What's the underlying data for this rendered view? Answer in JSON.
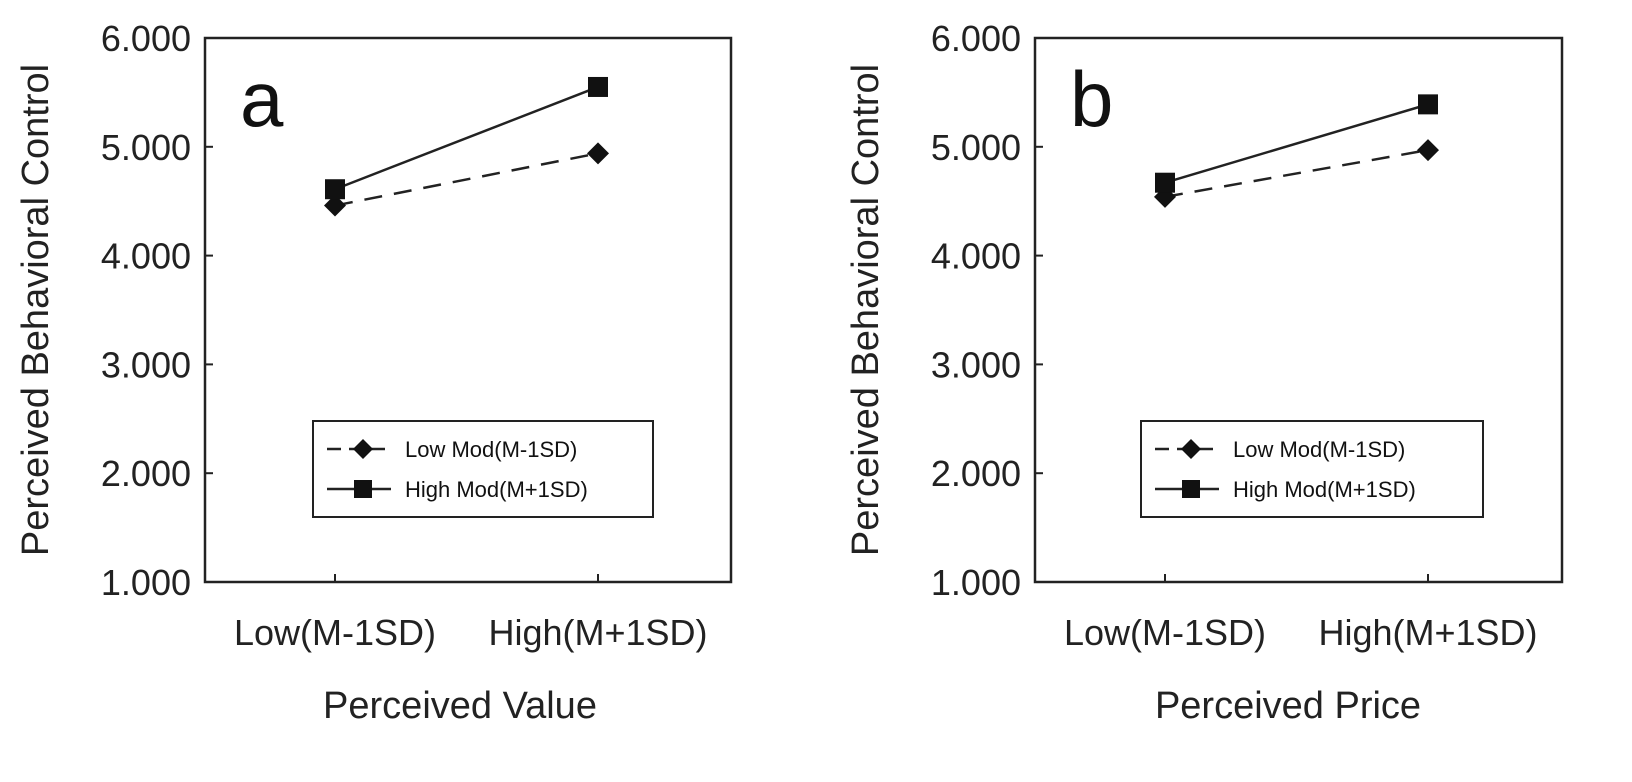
{
  "chart_data": [
    {
      "type": "line",
      "panel_label": "a",
      "xlabel": "Perceived Value",
      "ylabel": "Perceived Behavioral Control",
      "categories": [
        "Low(M-1SD)",
        "High(M+1SD)"
      ],
      "ylim": [
        1.0,
        6.0
      ],
      "yticks": [
        "1.000",
        "2.000",
        "3.000",
        "4.000",
        "5.000",
        "6.000"
      ],
      "legend_position": "lower-center",
      "series": [
        {
          "name": "Low Mod(M-1SD)",
          "marker": "diamond",
          "style": "dashed",
          "values": [
            4.46,
            4.94
          ]
        },
        {
          "name": "High Mod(M+1SD)",
          "marker": "square",
          "style": "solid",
          "values": [
            4.61,
            5.55
          ]
        }
      ]
    },
    {
      "type": "line",
      "panel_label": "b",
      "xlabel": "Perceived Price",
      "ylabel": "Perceived Behavioral Control",
      "categories": [
        "Low(M-1SD)",
        "High(M+1SD)"
      ],
      "ylim": [
        1.0,
        6.0
      ],
      "yticks": [
        "1.000",
        "2.000",
        "3.000",
        "4.000",
        "5.000",
        "6.000"
      ],
      "legend_position": "lower-center",
      "series": [
        {
          "name": "Low Mod(M-1SD)",
          "marker": "diamond",
          "style": "dashed",
          "values": [
            4.54,
            4.97
          ]
        },
        {
          "name": "High Mod(M+1SD)",
          "marker": "square",
          "style": "solid",
          "values": [
            4.67,
            5.39
          ]
        }
      ]
    }
  ]
}
